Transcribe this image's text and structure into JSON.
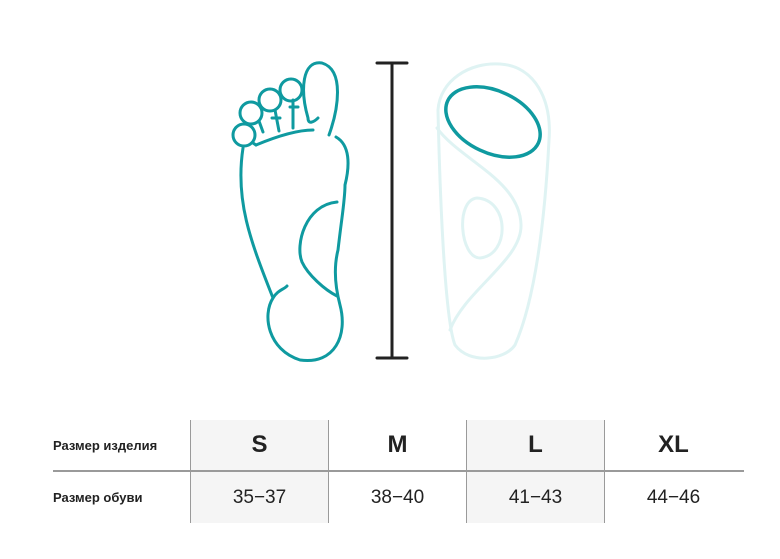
{
  "colors": {
    "accent": "#0f9aa0",
    "insole": "#dff3f3",
    "ruler": "#222222"
  },
  "table": {
    "row_product": {
      "label": "Размер изделия",
      "values": [
        "S",
        "M",
        "L",
        "XL"
      ]
    },
    "row_shoe": {
      "label": "Размер обуви",
      "values": [
        "35−37",
        "38−40",
        "41−43",
        "44−46"
      ]
    }
  }
}
